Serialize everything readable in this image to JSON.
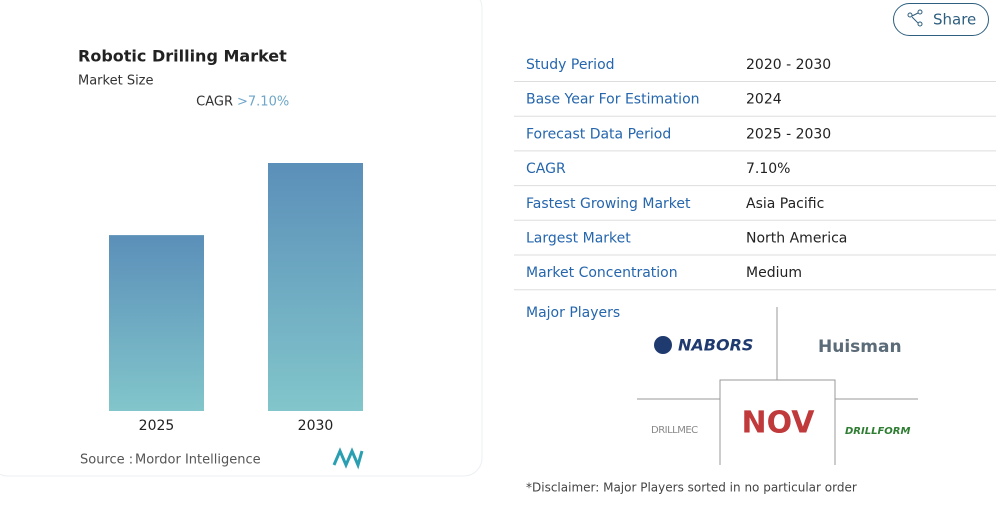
{
  "chart_data": {
    "type": "bar",
    "title": "Robotic Drilling Market",
    "subtitle": "Market Size",
    "cagr_label": "CAGR",
    "cagr_value": ">7.10%",
    "categories": [
      "2025",
      "2030"
    ],
    "values": [
      1,
      1.41
    ],
    "colors": [
      "#5b8fb9",
      "#82c6cb"
    ],
    "source_label": "Source :",
    "source": "Mordor Intelligence"
  },
  "share": "Share",
  "table": {
    "rows": [
      [
        "Study Period",
        "2020 - 2030"
      ],
      [
        "Base Year For Estimation",
        "2024"
      ],
      [
        "Forecast Data Period",
        "2025 - 2030"
      ],
      [
        "CAGR",
        "7.10%"
      ],
      [
        "Fastest Growing Market",
        "Asia Pacific"
      ],
      [
        "Largest Market",
        "North America"
      ],
      [
        "Market Concentration",
        "Medium"
      ]
    ]
  },
  "players": {
    "title": "Major Players",
    "logos": [
      "NABORS",
      "Huisman",
      "DRILLMEC",
      "NOV",
      "DRILLFORM"
    ]
  },
  "disclaimer": "*Disclaimer: Major Players sorted in no particular order"
}
